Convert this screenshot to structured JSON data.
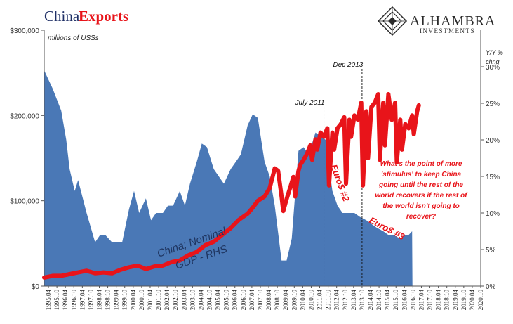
{
  "title_part1": "China",
  "title_part2": "Exports",
  "logo": {
    "name": "ALHAMBRA",
    "sub": "INVESTMENTS"
  },
  "colors": {
    "exports_line": "#e8141a",
    "gdp_area": "#4a78b6",
    "title_dark": "#1f2f66",
    "annotation_red": "#e8141a"
  },
  "chart_data": {
    "type": "line",
    "left_axis": {
      "label": "millions of USSs",
      "range": [
        0,
        300000
      ],
      "ticks": [
        "$0",
        "$100,000",
        "$200,000",
        "$300,000"
      ],
      "tick_values": [
        0,
        100000,
        200000,
        300000
      ]
    },
    "right_axis": {
      "label_line1": "Y/Y %",
      "label_line2": "chng",
      "range": [
        0,
        35
      ],
      "ticks": [
        "0%",
        "5%",
        "10%",
        "15%",
        "20%",
        "25%",
        "30%"
      ],
      "tick_values": [
        0,
        5,
        10,
        15,
        20,
        25,
        30
      ]
    },
    "x_tick_labels": [
      "1995.04",
      "1995.10",
      "1996.04",
      "1996.10",
      "1997.04",
      "1997.10",
      "1998.04",
      "1998.10",
      "1999.04",
      "1999.10",
      "2000.04",
      "2000.10",
      "2001.04",
      "2001.10",
      "2002.04",
      "2002.10",
      "2003.04",
      "2003.10",
      "2004.04",
      "2004.10",
      "2005.04",
      "2005.10",
      "2006.04",
      "2006.10",
      "2007.04",
      "2007.10",
      "2008.04",
      "2008.10",
      "2009.04",
      "2009.10",
      "2010.04",
      "2010.10",
      "2011.04",
      "2011.10",
      "2012.04",
      "2012.10",
      "2013.04",
      "2013.10",
      "2014.04",
      "2014.10",
      "2015.04",
      "2015.10",
      "2016.04",
      "2016.10",
      "2017.04",
      "2017.10",
      "2018.04",
      "2018.10",
      "2019.04",
      "2019.10",
      "2020.04",
      "2020.10"
    ],
    "x_range": [
      1995.0,
      2020.75
    ],
    "series": [
      {
        "name": "China Exports",
        "axis": "left",
        "style": "line",
        "x": [
          1995.0,
          1995.5,
          1996.0,
          1996.5,
          1997.0,
          1997.5,
          1998.0,
          1998.5,
          1999.0,
          1999.5,
          2000.0,
          2000.5,
          2001.0,
          2001.5,
          2002.0,
          2002.5,
          2003.0,
          2003.5,
          2004.0,
          2004.5,
          2005.0,
          2005.5,
          2006.0,
          2006.5,
          2007.0,
          2007.3,
          2007.6,
          2008.0,
          2008.3,
          2008.6,
          2008.8,
          2009.0,
          2009.1,
          2009.3,
          2009.5,
          2009.7,
          2009.8,
          2010.0,
          2010.1,
          2010.3,
          2010.5,
          2010.7,
          2010.8,
          2011.0,
          2011.1,
          2011.3,
          2011.5,
          2011.7,
          2011.8,
          2012.0,
          2012.1,
          2012.3,
          2012.5,
          2012.7,
          2012.8,
          2013.0,
          2013.1,
          2013.3,
          2013.5,
          2013.7,
          2013.8,
          2014.0,
          2014.1,
          2014.3,
          2014.5,
          2014.7,
          2014.8,
          2015.0,
          2015.1,
          2015.3,
          2015.5,
          2015.7,
          2015.8,
          2016.0,
          2016.1,
          2016.3,
          2016.5,
          2016.7,
          2016.8,
          2017.0,
          2017.1
        ],
        "values": [
          10000,
          12000,
          12000,
          14000,
          16000,
          18000,
          15000,
          16000,
          15000,
          19000,
          22000,
          24000,
          20000,
          23000,
          24000,
          28000,
          30000,
          36000,
          40000,
          48000,
          52000,
          60000,
          68000,
          78000,
          85000,
          92000,
          100000,
          105000,
          115000,
          138000,
          135000,
          105000,
          88000,
          102000,
          115000,
          128000,
          105000,
          135000,
          142000,
          148000,
          155000,
          165000,
          148000,
          172000,
          160000,
          180000,
          175000,
          185000,
          118000,
          180000,
          160000,
          185000,
          190000,
          198000,
          120000,
          195000,
          175000,
          200000,
          195000,
          215000,
          118000,
          205000,
          150000,
          210000,
          215000,
          225000,
          148000,
          215000,
          165000,
          225000,
          195000,
          215000,
          145000,
          195000,
          160000,
          190000,
          185000,
          200000,
          178000,
          205000,
          212000
        ]
      },
      {
        "name": "China; Nominal GDP - RHS",
        "axis": "right",
        "style": "area",
        "x": [
          1995.0,
          1995.5,
          1996.0,
          1996.3,
          1996.5,
          1996.8,
          1997.0,
          1997.5,
          1998.0,
          1998.3,
          1998.6,
          1999.0,
          1999.3,
          1999.6,
          2000.0,
          2000.3,
          2000.6,
          2001.0,
          2001.3,
          2001.6,
          2002.0,
          2002.3,
          2002.6,
          2003.0,
          2003.3,
          2003.6,
          2004.0,
          2004.3,
          2004.6,
          2005.0,
          2005.3,
          2005.6,
          2006.0,
          2006.3,
          2006.6,
          2007.0,
          2007.3,
          2007.6,
          2008.0,
          2008.3,
          2008.6,
          2009.0,
          2009.3,
          2009.6,
          2010.0,
          2010.3,
          2010.6,
          2011.0,
          2011.3,
          2011.6,
          2012.0,
          2012.3,
          2012.6,
          2013.0,
          2013.3,
          2013.6,
          2014.0,
          2014.3,
          2014.6,
          2015.0,
          2015.3,
          2015.6,
          2016.0,
          2016.3,
          2016.5,
          2016.7,
          2016.72
        ],
        "values": [
          29.5,
          27,
          24,
          20,
          16,
          13,
          14.5,
          10,
          6,
          7,
          7,
          6,
          6,
          6,
          10.5,
          13,
          10,
          12,
          9,
          10,
          10,
          11,
          11,
          13,
          11,
          14,
          17,
          19.5,
          19,
          16,
          15,
          14,
          16,
          17,
          18,
          22,
          23.5,
          23,
          17,
          15,
          11,
          3.5,
          3.5,
          6.5,
          18.5,
          19,
          18,
          21,
          20.5,
          20,
          13,
          11,
          10,
          10,
          10,
          9.5,
          9,
          8.5,
          8,
          7.5,
          7,
          7,
          6.5,
          7,
          7,
          7.5,
          0
        ]
      }
    ],
    "markers": [
      {
        "x": 2011.5,
        "label": "July 2011"
      },
      {
        "x": 2013.75,
        "label": "Dec 2013"
      }
    ],
    "annotations": {
      "gdp_label_line1": "China; Nominal",
      "gdp_label_line2": "GDP - RHS",
      "euro2": "Euro$ #2",
      "euro3": "Euro$ #3",
      "question": [
        "What's the point of more",
        "'stimulus' to keep China",
        "going until the rest of the",
        "world recovers if the rest of",
        "the world isn't going to",
        "recover?"
      ]
    }
  }
}
